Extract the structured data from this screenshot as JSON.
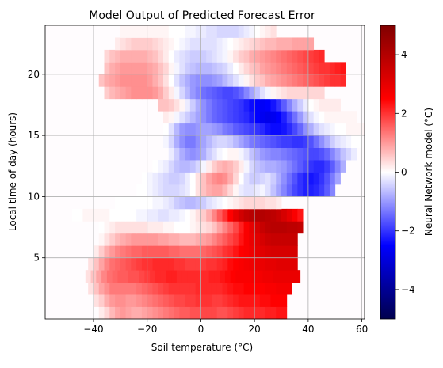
{
  "chart_data": {
    "type": "heatmap",
    "title": "Model Output of Predicted Forecast Error",
    "xlabel": "Soil temperature (°C)",
    "ylabel": "Local time of day (hours)",
    "xlim": [
      -58,
      61
    ],
    "ylim": [
      0,
      24
    ],
    "xticks": [
      -40,
      -20,
      0,
      20,
      40,
      60
    ],
    "xtick_labels": [
      "−40",
      "−20",
      "0",
      "20",
      "40",
      "60"
    ],
    "yticks": [
      5,
      10,
      15,
      20
    ],
    "ytick_labels": [
      "5",
      "10",
      "15",
      "20"
    ],
    "grid": true,
    "colormap": "seismic",
    "colorbar": {
      "label": "Neural Network model (°C)",
      "range": [
        -5,
        5
      ],
      "ticks": [
        -4,
        -2,
        0,
        2,
        4
      ],
      "tick_labels": [
        "−4",
        "−2",
        "0",
        "2",
        "4"
      ]
    },
    "grid_step": {
      "x": 2,
      "y": 1
    },
    "hour_rows": [
      {
        "hour": 1,
        "x_min": -38,
        "x_max": 30,
        "values": [
          0.2,
          0.4,
          0.7,
          0.9,
          1.0,
          0.9,
          0.8,
          0.8,
          0.9,
          1.0,
          1.1,
          1.2,
          1.3,
          1.4,
          1.5,
          1.6,
          1.6,
          1.7,
          1.7,
          1.8,
          1.8,
          1.8,
          1.7,
          1.7,
          1.8,
          1.9,
          2.0,
          2.1,
          2.1,
          2.1,
          2.1,
          2.2,
          2.2,
          2.3,
          2.3
        ]
      },
      {
        "hour": 2,
        "x_min": -40,
        "x_max": 31,
        "values": [
          0.3,
          0.5,
          0.8,
          1.0,
          1.1,
          1.1,
          1.0,
          1.0,
          1.1,
          1.2,
          1.3,
          1.4,
          1.5,
          1.6,
          1.7,
          1.8,
          1.8,
          1.9,
          1.9,
          2.0,
          2.0,
          2.0,
          1.9,
          1.9,
          2.0,
          2.1,
          2.2,
          2.3,
          2.3,
          2.3,
          2.3,
          2.4,
          2.4,
          2.5,
          2.5,
          2.5
        ]
      },
      {
        "hour": 3,
        "x_min": -42,
        "x_max": 33,
        "values": [
          0.3,
          0.6,
          0.9,
          1.1,
          1.3,
          1.3,
          1.3,
          1.3,
          1.3,
          1.4,
          1.5,
          1.6,
          1.7,
          1.8,
          1.9,
          2.0,
          2.0,
          2.0,
          2.0,
          2.0,
          2.1,
          2.1,
          2.1,
          2.1,
          2.1,
          2.2,
          2.3,
          2.4,
          2.4,
          2.5,
          2.5,
          2.5,
          2.5,
          2.6,
          2.6,
          2.7,
          2.7,
          2.7
        ]
      },
      {
        "hour": 4,
        "x_min": -43,
        "x_max": 35,
        "values": [
          0.3,
          0.6,
          0.9,
          1.2,
          1.4,
          1.5,
          1.6,
          1.6,
          1.7,
          1.7,
          1.8,
          1.9,
          2.0,
          2.1,
          2.1,
          2.2,
          2.2,
          2.1,
          2.1,
          2.1,
          2.1,
          2.1,
          2.1,
          2.2,
          2.2,
          2.3,
          2.4,
          2.5,
          2.6,
          2.6,
          2.6,
          2.7,
          2.7,
          2.8,
          2.8,
          2.9,
          2.9,
          2.9,
          2.9,
          2.9
        ]
      },
      {
        "hour": 5,
        "x_min": -42,
        "x_max": 35,
        "values": [
          0.3,
          0.6,
          0.9,
          1.2,
          1.4,
          1.5,
          1.6,
          1.7,
          1.8,
          1.9,
          2.0,
          2.0,
          2.1,
          2.1,
          2.1,
          2.1,
          2.0,
          2.0,
          1.9,
          1.9,
          1.9,
          1.9,
          2.0,
          2.0,
          2.1,
          2.2,
          2.4,
          2.5,
          2.6,
          2.7,
          2.8,
          2.9,
          2.9,
          3.0,
          3.0,
          3.1,
          3.1,
          3.1,
          3.1
        ]
      },
      {
        "hour": 6,
        "x_min": -40,
        "x_max": 35,
        "values": [
          0.2,
          0.5,
          0.8,
          1.0,
          1.2,
          1.3,
          1.4,
          1.5,
          1.5,
          1.6,
          1.6,
          1.6,
          1.6,
          1.6,
          1.5,
          1.5,
          1.4,
          1.4,
          1.4,
          1.4,
          1.5,
          1.6,
          1.7,
          1.8,
          2.0,
          2.1,
          2.3,
          2.5,
          2.6,
          2.8,
          3.0,
          3.1,
          3.2,
          3.3,
          3.3,
          3.3,
          3.3,
          3.3
        ]
      },
      {
        "hour": 7,
        "x_min": -38,
        "x_max": 35,
        "values": [
          0.1,
          0.3,
          0.5,
          0.7,
          0.8,
          0.9,
          1.0,
          1.0,
          1.0,
          1.0,
          1.0,
          0.9,
          0.9,
          0.8,
          0.8,
          0.7,
          0.7,
          0.7,
          0.8,
          0.9,
          1.0,
          1.2,
          1.4,
          1.6,
          1.8,
          2.0,
          2.3,
          2.6,
          2.9,
          3.1,
          3.3,
          3.5,
          3.6,
          3.6,
          3.6,
          3.6,
          3.6
        ]
      },
      {
        "hour": 8,
        "x_min": -38,
        "x_max": 36,
        "values": [
          0.0,
          0.1,
          0.2,
          0.3,
          0.3,
          0.3,
          0.3,
          0.3,
          0.3,
          0.2,
          0.2,
          0.2,
          0.1,
          0.1,
          0.0,
          0.0,
          0.0,
          0.1,
          0.2,
          0.3,
          0.4,
          0.6,
          0.9,
          1.2,
          1.5,
          1.8,
          2.2,
          2.6,
          3.0,
          3.3,
          3.6,
          3.8,
          3.9,
          3.9,
          3.9,
          3.8,
          3.8,
          3.7
        ]
      },
      {
        "hour": 9,
        "x_min": -48,
        "x_max": 37,
        "values": [
          0.0,
          0.0,
          0.1,
          0.1,
          0.1,
          0.1,
          0.1,
          0.0,
          0.0,
          0.0,
          0.0,
          0.0,
          -0.1,
          -0.1,
          -0.2,
          -0.2,
          -0.3,
          -0.3,
          -0.2,
          -0.2,
          -0.1,
          0.0,
          0.1,
          0.3,
          0.5,
          0.8,
          1.2,
          1.6,
          2.0,
          2.5,
          3.0,
          3.4,
          3.7,
          3.9,
          4.0,
          4.0,
          3.9,
          3.8,
          3.6,
          3.3,
          3.0,
          2.6,
          2.3
        ]
      },
      {
        "hour": 10,
        "x_min": -32,
        "x_max": 29,
        "values": [
          0.0,
          0.0,
          0.0,
          0.0,
          0.0,
          0.0,
          0.0,
          -0.1,
          -0.1,
          -0.2,
          -0.3,
          -0.5,
          -0.6,
          -0.7,
          -0.7,
          -0.6,
          -0.5,
          -0.3,
          -0.2,
          -0.1,
          0.0,
          0.1,
          0.2,
          0.3,
          0.4,
          0.4,
          0.4,
          0.4,
          0.3,
          0.3,
          0.2
        ]
      },
      {
        "hour": 11,
        "x_min": -24,
        "x_max": 48,
        "values": [
          0.0,
          0.0,
          -0.1,
          -0.2,
          -0.3,
          -0.4,
          -0.4,
          -0.4,
          -0.3,
          -0.2,
          0.0,
          0.3,
          0.6,
          0.8,
          0.9,
          0.9,
          0.7,
          0.4,
          0.1,
          -0.2,
          -0.3,
          -0.3,
          -0.2,
          -0.1,
          -0.3,
          -0.6,
          -0.9,
          -1.2,
          -1.5,
          -1.8,
          -2.0,
          -2.2,
          -2.2,
          -2.1,
          -1.9,
          -1.6,
          -1.2
        ]
      },
      {
        "hour": 12,
        "x_min": -22,
        "x_max": 50,
        "values": [
          0.0,
          -0.1,
          -0.2,
          -0.3,
          -0.4,
          -0.5,
          -0.5,
          -0.4,
          -0.2,
          0.0,
          0.3,
          0.6,
          0.9,
          1.1,
          1.2,
          1.1,
          0.8,
          0.4,
          0.0,
          -0.3,
          -0.5,
          -0.5,
          -0.4,
          -0.3,
          -0.5,
          -0.8,
          -1.1,
          -1.4,
          -1.7,
          -2.0,
          -2.2,
          -2.3,
          -2.2,
          -2.0,
          -1.7,
          -1.3,
          -0.9
        ]
      },
      {
        "hour": 13,
        "x_min": -18,
        "x_max": 52,
        "values": [
          0.0,
          -0.1,
          -0.2,
          -0.4,
          -0.6,
          -0.7,
          -0.7,
          -0.6,
          -0.4,
          -0.1,
          0.2,
          0.5,
          0.7,
          0.8,
          0.7,
          0.5,
          0.2,
          -0.1,
          -0.4,
          -0.6,
          -0.7,
          -0.8,
          -0.8,
          -0.9,
          -1.0,
          -1.2,
          -1.4,
          -1.6,
          -1.8,
          -2.0,
          -2.1,
          -2.1,
          -1.9,
          -1.6,
          -1.2,
          -0.8
        ]
      },
      {
        "hour": 14,
        "x_min": -12,
        "x_max": 56,
        "values": [
          -0.2,
          -0.5,
          -0.8,
          -1.0,
          -1.1,
          -1.0,
          -0.8,
          -0.5,
          -0.3,
          -0.1,
          0.0,
          0.1,
          0.1,
          -0.1,
          -0.3,
          -0.6,
          -0.8,
          -1.0,
          -1.1,
          -1.2,
          -1.2,
          -1.3,
          -1.4,
          -1.5,
          -1.6,
          -1.7,
          -1.8,
          -1.8,
          -1.7,
          -1.5,
          -1.2,
          -0.9,
          -0.6,
          -0.4,
          -0.2
        ]
      },
      {
        "hour": 15,
        "x_min": -14,
        "x_max": 58,
        "values": [
          -0.1,
          -0.4,
          -0.8,
          -1.1,
          -1.3,
          -1.3,
          -1.1,
          -0.9,
          -0.7,
          -0.5,
          -0.4,
          -0.4,
          -0.5,
          -0.7,
          -0.9,
          -1.1,
          -1.3,
          -1.4,
          -1.5,
          -1.6,
          -1.7,
          -1.8,
          -1.9,
          -1.9,
          -2.0,
          -2.0,
          -1.9,
          -1.7,
          -1.4,
          -1.1,
          -0.8,
          -0.5,
          -0.3,
          -0.2,
          -0.1,
          0.0,
          0.0
        ]
      },
      {
        "hour": 16,
        "x_min": -14,
        "x_max": 60,
        "values": [
          0.0,
          -0.3,
          -0.7,
          -1.0,
          -1.1,
          -1.1,
          -1.0,
          -0.9,
          -0.9,
          -1.0,
          -1.1,
          -1.3,
          -1.4,
          -1.6,
          -1.7,
          -1.8,
          -1.9,
          -2.0,
          -2.1,
          -2.3,
          -2.4,
          -2.4,
          -2.3,
          -2.1,
          -1.8,
          -1.5,
          -1.1,
          -0.8,
          -0.5,
          -0.3,
          -0.2,
          -0.1,
          0.0,
          0.0,
          0.1,
          0.1,
          0.1,
          0.1
        ]
      },
      {
        "hour": 17,
        "x_min": -14,
        "x_max": 56,
        "values": [
          0.2,
          0.1,
          -0.1,
          -0.3,
          -0.5,
          -0.7,
          -0.9,
          -1.1,
          -1.3,
          -1.5,
          -1.6,
          -1.7,
          -1.8,
          -1.9,
          -2.0,
          -2.1,
          -2.3,
          -2.5,
          -2.7,
          -2.8,
          -2.7,
          -2.5,
          -2.2,
          -1.8,
          -1.4,
          -1.0,
          -0.6,
          -0.3,
          -0.1,
          0.0,
          0.1,
          0.1,
          0.1,
          0.1,
          0.1,
          0.1
        ]
      },
      {
        "hour": 18,
        "x_min": -16,
        "x_max": 50,
        "values": [
          0.6,
          0.6,
          0.5,
          0.3,
          0.1,
          -0.2,
          -0.5,
          -0.8,
          -1.1,
          -1.3,
          -1.5,
          -1.6,
          -1.7,
          -1.8,
          -1.9,
          -2.0,
          -2.2,
          -2.4,
          -2.5,
          -2.6,
          -2.5,
          -2.3,
          -2.0,
          -1.6,
          -1.2,
          -0.8,
          -0.5,
          -0.2,
          0.0,
          0.1,
          0.2,
          0.2,
          0.2,
          0.2
        ]
      },
      {
        "hour": 19,
        "x_min": -36,
        "x_max": 45,
        "values": [
          0.5,
          0.7,
          0.8,
          0.9,
          1.0,
          1.1,
          1.1,
          1.1,
          1.1,
          1.0,
          0.8,
          0.5,
          0.2,
          -0.1,
          -0.4,
          -0.7,
          -1.0,
          -1.2,
          -1.4,
          -1.5,
          -1.6,
          -1.7,
          -1.8,
          -1.8,
          -1.7,
          -1.5,
          -1.2,
          -0.9,
          -0.6,
          -0.3,
          -0.1,
          0.1,
          0.2,
          0.3,
          0.4,
          0.4,
          0.4,
          0.4,
          0.4,
          0.4,
          0.4
        ]
      },
      {
        "hour": 20,
        "x_min": -38,
        "x_max": 52,
        "values": [
          0.6,
          0.8,
          0.9,
          1.0,
          1.1,
          1.1,
          1.1,
          1.1,
          1.1,
          1.0,
          0.8,
          0.6,
          0.3,
          0.0,
          -0.3,
          -0.6,
          -0.8,
          -1.0,
          -1.1,
          -1.1,
          -1.1,
          -1.0,
          -0.9,
          -0.7,
          -0.5,
          -0.3,
          -0.1,
          0.1,
          0.3,
          0.5,
          0.6,
          0.8,
          0.9,
          1.0,
          1.1,
          1.2,
          1.3,
          1.4,
          1.5,
          1.6,
          1.7,
          1.8,
          1.9,
          2.0,
          2.0,
          2.1
        ]
      },
      {
        "hour": 21,
        "x_min": -36,
        "x_max": 52,
        "values": [
          0.6,
          0.8,
          0.9,
          1.0,
          1.0,
          1.0,
          1.0,
          1.0,
          0.9,
          0.8,
          0.6,
          0.4,
          0.1,
          -0.1,
          -0.3,
          -0.5,
          -0.6,
          -0.7,
          -0.7,
          -0.7,
          -0.6,
          -0.5,
          -0.4,
          -0.2,
          0.0,
          0.2,
          0.4,
          0.6,
          0.7,
          0.9,
          1.0,
          1.1,
          1.2,
          1.3,
          1.4,
          1.5,
          1.6,
          1.7,
          1.8,
          1.9,
          2.0,
          2.0,
          2.1,
          2.2,
          2.3
        ]
      },
      {
        "hour": 22,
        "x_min": -36,
        "x_max": 45,
        "values": [
          0.4,
          0.6,
          0.7,
          0.8,
          0.8,
          0.8,
          0.8,
          0.8,
          0.7,
          0.6,
          0.4,
          0.2,
          0.0,
          -0.2,
          -0.3,
          -0.4,
          -0.5,
          -0.5,
          -0.5,
          -0.4,
          -0.3,
          -0.2,
          -0.1,
          0.1,
          0.3,
          0.5,
          0.6,
          0.8,
          0.9,
          1.0,
          1.1,
          1.2,
          1.3,
          1.4,
          1.5,
          1.6,
          1.7,
          1.8,
          1.9,
          2.0,
          2.1
        ]
      },
      {
        "hour": 23,
        "x_min": -32,
        "x_max": 40,
        "values": [
          0.2,
          0.3,
          0.4,
          0.5,
          0.5,
          0.5,
          0.5,
          0.4,
          0.3,
          0.2,
          0.1,
          0.0,
          -0.1,
          -0.2,
          -0.3,
          -0.3,
          -0.3,
          -0.3,
          -0.3,
          -0.2,
          -0.1,
          0.0,
          0.1,
          0.2,
          0.3,
          0.4,
          0.5,
          0.6,
          0.7,
          0.7,
          0.8,
          0.8,
          0.8,
          0.9,
          0.9,
          0.9,
          0.9
        ]
      },
      {
        "hour": 24,
        "x_min": -30,
        "x_max": 26,
        "values": [
          0.1,
          0.1,
          0.1,
          0.1,
          0.1,
          0.1,
          0.1,
          0.1,
          0.1,
          0.0,
          0.0,
          0.0,
          -0.1,
          -0.1,
          -0.2,
          -0.2,
          -0.3,
          -0.3,
          -0.4,
          -0.4,
          -0.4,
          -0.4,
          -0.3,
          -0.2,
          -0.1,
          0.0,
          0.1,
          0.2,
          0.3
        ]
      }
    ]
  }
}
